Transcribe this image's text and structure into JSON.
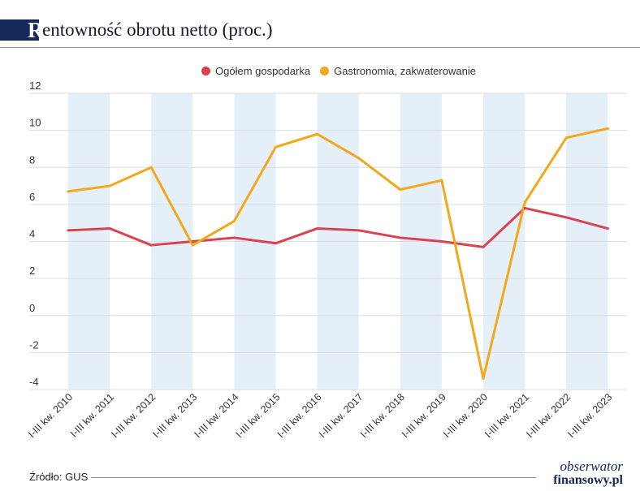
{
  "header": {
    "title_initial": "R",
    "title_rest": "entowność obrotu netto (proc.)"
  },
  "footer": {
    "source": "Źródło: GUS",
    "logo_line1": "obserwator",
    "logo_line2": "finansowy.pl"
  },
  "colors": {
    "ogolem": "#d9434f",
    "gastro": "#f2a81d",
    "band": "#e5eff8",
    "grid": "#d9dde3",
    "axis_text": "#333333",
    "title_bar": "#14285a"
  },
  "chart_data": {
    "type": "line",
    "title": "Rentowność obrotu netto (proc.)",
    "categories": [
      "I-III kw. 2010",
      "I-III kw. 2011",
      "I-III kw. 2012",
      "I-III kw. 2013",
      "I-III kw. 2014",
      "I-III kw. 2015",
      "I-III kw. 2016",
      "I-III kw. 2017",
      "I-III kw. 2018",
      "I-III kw. 2019",
      "I-III kw. 2020",
      "I-III kw. 2021",
      "I-III kw. 2022",
      "I-III kw. 2023"
    ],
    "series": [
      {
        "name": "Ogółem gospodarka",
        "color": "#d9434f",
        "values": [
          4.6,
          4.7,
          3.8,
          4.0,
          4.2,
          3.9,
          4.7,
          4.6,
          4.2,
          4.0,
          3.7,
          5.8,
          5.3,
          4.7
        ]
      },
      {
        "name": "Gastronomia, zakwaterowanie",
        "color": "#f2a81d",
        "values": [
          6.7,
          7.0,
          8.0,
          3.8,
          5.1,
          9.1,
          9.8,
          8.5,
          6.8,
          7.3,
          -3.4,
          6.1,
          9.6,
          10.1
        ]
      }
    ],
    "ylim": [
      -4,
      12
    ],
    "yticks": [
      -4,
      -2,
      0,
      2,
      4,
      6,
      8,
      10,
      12
    ],
    "grid": true,
    "legend": "top-center",
    "shaded_bands": "alternating"
  }
}
